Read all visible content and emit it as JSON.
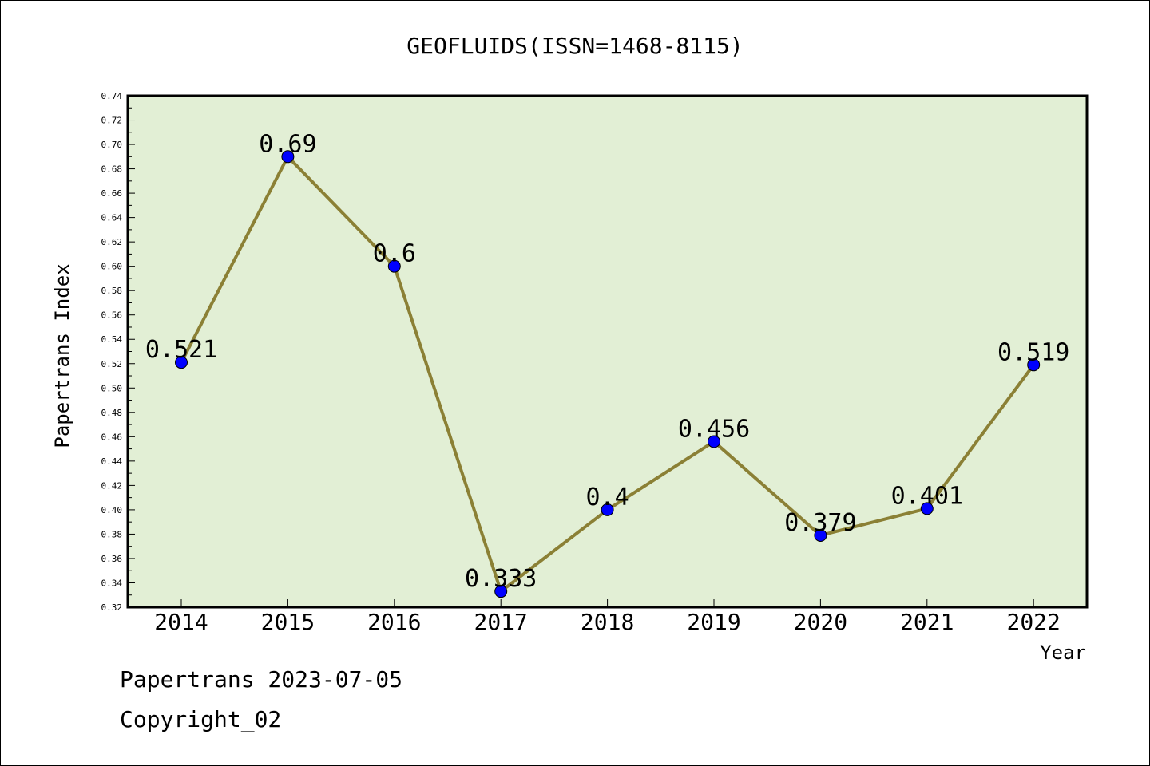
{
  "chart_data": {
    "type": "line",
    "title": "GEOFLUIDS(ISSN=1468-8115)",
    "xlabel": "Year",
    "ylabel": "Papertrans Index",
    "categories": [
      "2014",
      "2015",
      "2016",
      "2017",
      "2018",
      "2019",
      "2020",
      "2021",
      "2022"
    ],
    "series": [
      {
        "values": [
          0.521,
          0.69,
          0.6,
          0.333,
          0.4,
          0.456,
          0.379,
          0.401,
          0.519
        ],
        "labels": [
          "0.521",
          "0.69",
          "0.6",
          "0.333",
          "0.4",
          "0.456",
          "0.379",
          "0.401",
          "0.519"
        ]
      }
    ],
    "ylim": [
      0.32,
      0.74
    ],
    "yticks": [
      "0.32",
      "0.34",
      "0.36",
      "0.38",
      "0.40",
      "0.42",
      "0.44",
      "0.46",
      "0.48",
      "0.50",
      "0.52",
      "0.54",
      "0.56",
      "0.58",
      "0.60",
      "0.62",
      "0.64",
      "0.66",
      "0.68",
      "0.70",
      "0.72",
      "0.74"
    ],
    "grid": false,
    "colors": {
      "line": "#8b8035",
      "marker": "#0000ff",
      "plot_background": "#e2efd5"
    }
  },
  "footer": {
    "line1": "Papertrans 2023-07-05",
    "line2": "Copyright_02"
  }
}
